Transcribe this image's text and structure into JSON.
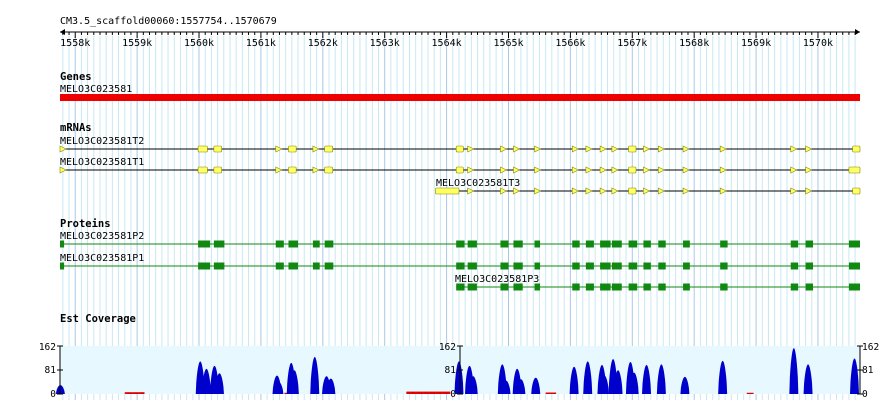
{
  "region": {
    "label": "CM3.5_scaffold00060:1557754..1570679",
    "start": 1557754,
    "end": 1570679
  },
  "ruler": {
    "ticks": [
      {
        "pos": 1558000,
        "label": "1558k"
      },
      {
        "pos": 1559000,
        "label": "1559k"
      },
      {
        "pos": 1560000,
        "label": "1560k"
      },
      {
        "pos": 1561000,
        "label": "1561k"
      },
      {
        "pos": 1562000,
        "label": "1562k"
      },
      {
        "pos": 1563000,
        "label": "1563k"
      },
      {
        "pos": 1564000,
        "label": "1564k"
      },
      {
        "pos": 1565000,
        "label": "1565k"
      },
      {
        "pos": 1566000,
        "label": "1566k"
      },
      {
        "pos": 1567000,
        "label": "1567k"
      },
      {
        "pos": 1568000,
        "label": "1568k"
      },
      {
        "pos": 1569000,
        "label": "1569k"
      },
      {
        "pos": 1570000,
        "label": "1570k"
      }
    ]
  },
  "tracks": {
    "genes": {
      "title": "Genes",
      "features": [
        {
          "name": "MELO3C023581",
          "start": 1557754,
          "end": 1570679,
          "color": "#ee0000"
        }
      ]
    },
    "mrnas": {
      "title": "mRNAs",
      "exon_color": "#ffff66",
      "features": [
        {
          "name": "MELO3C023581T2",
          "start": 1557754,
          "end": 1570679,
          "exons": [
            [
              1557754,
              1557790
            ],
            [
              1559985,
              1560135
            ],
            [
              1560240,
              1560365
            ],
            [
              1561240,
              1561310
            ],
            [
              1561445,
              1561570
            ],
            [
              1561840,
              1561920
            ],
            [
              1562030,
              1562160
            ],
            [
              1564155,
              1564270
            ],
            [
              1564340,
              1564450
            ],
            [
              1564870,
              1564980
            ],
            [
              1565080,
              1565190
            ],
            [
              1565420,
              1565480
            ],
            [
              1566030,
              1566130
            ],
            [
              1566250,
              1566330
            ],
            [
              1566480,
              1566590
            ],
            [
              1566670,
              1566780
            ],
            [
              1566940,
              1567060
            ],
            [
              1567180,
              1567260
            ],
            [
              1567420,
              1567520
            ],
            [
              1567820,
              1567880
            ],
            [
              1568420,
              1568520
            ],
            [
              1569560,
              1569640
            ],
            [
              1569800,
              1569880
            ],
            [
              1570560,
              1570679
            ]
          ]
        },
        {
          "name": "MELO3C023581T1",
          "start": 1557754,
          "end": 1570679,
          "exons": [
            [
              1557754,
              1557790
            ],
            [
              1559985,
              1560135
            ],
            [
              1560240,
              1560365
            ],
            [
              1561240,
              1561310
            ],
            [
              1561445,
              1561570
            ],
            [
              1561840,
              1561920
            ],
            [
              1562030,
              1562160
            ],
            [
              1564155,
              1564270
            ],
            [
              1564340,
              1564450
            ],
            [
              1564870,
              1564980
            ],
            [
              1565080,
              1565190
            ],
            [
              1565420,
              1565480
            ],
            [
              1566030,
              1566130
            ],
            [
              1566250,
              1566330
            ],
            [
              1566480,
              1566590
            ],
            [
              1566670,
              1566780
            ],
            [
              1566940,
              1567060
            ],
            [
              1567180,
              1567260
            ],
            [
              1567420,
              1567520
            ],
            [
              1567820,
              1567880
            ],
            [
              1568420,
              1568520
            ],
            [
              1569560,
              1569640
            ],
            [
              1569800,
              1569880
            ],
            [
              1570500,
              1570679
            ]
          ]
        },
        {
          "name": "MELO3C023581T3",
          "start": 1563820,
          "end": 1570679,
          "exons": [
            [
              1563820,
              1564200
            ],
            [
              1564340,
              1564450
            ],
            [
              1564870,
              1564980
            ],
            [
              1565080,
              1565190
            ],
            [
              1565420,
              1565480
            ],
            [
              1566030,
              1566130
            ],
            [
              1566250,
              1566330
            ],
            [
              1566480,
              1566590
            ],
            [
              1566670,
              1566780
            ],
            [
              1566940,
              1567060
            ],
            [
              1567180,
              1567260
            ],
            [
              1567420,
              1567520
            ],
            [
              1567820,
              1567880
            ],
            [
              1568420,
              1568520
            ],
            [
              1569560,
              1569640
            ],
            [
              1569800,
              1569880
            ],
            [
              1570560,
              1570679
            ]
          ]
        }
      ]
    },
    "proteins": {
      "title": "Proteins",
      "exon_color": "#118811",
      "features": [
        {
          "name": "MELO3C023581P2",
          "start": 1557754,
          "end": 1570679,
          "exons": [
            [
              1557754,
              1557820
            ],
            [
              1559985,
              1560180
            ],
            [
              1560240,
              1560410
            ],
            [
              1561240,
              1561370
            ],
            [
              1561445,
              1561600
            ],
            [
              1561840,
              1561950
            ],
            [
              1562030,
              1562170
            ],
            [
              1564155,
              1564290
            ],
            [
              1564340,
              1564490
            ],
            [
              1564870,
              1565000
            ],
            [
              1565080,
              1565230
            ],
            [
              1565420,
              1565510
            ],
            [
              1566030,
              1566150
            ],
            [
              1566250,
              1566380
            ],
            [
              1566480,
              1566650
            ],
            [
              1566670,
              1566830
            ],
            [
              1566940,
              1567080
            ],
            [
              1567180,
              1567300
            ],
            [
              1567420,
              1567540
            ],
            [
              1567820,
              1567930
            ],
            [
              1568420,
              1568540
            ],
            [
              1569560,
              1569680
            ],
            [
              1569800,
              1569920
            ],
            [
              1570500,
              1570679
            ]
          ]
        },
        {
          "name": "MELO3C023581P1",
          "start": 1557754,
          "end": 1570679,
          "exons": [
            [
              1557754,
              1557820
            ],
            [
              1559985,
              1560180
            ],
            [
              1560240,
              1560410
            ],
            [
              1561240,
              1561370
            ],
            [
              1561445,
              1561600
            ],
            [
              1561840,
              1561950
            ],
            [
              1562030,
              1562170
            ],
            [
              1564155,
              1564290
            ],
            [
              1564340,
              1564490
            ],
            [
              1564870,
              1565000
            ],
            [
              1565080,
              1565230
            ],
            [
              1565420,
              1565510
            ],
            [
              1566030,
              1566150
            ],
            [
              1566250,
              1566380
            ],
            [
              1566480,
              1566650
            ],
            [
              1566670,
              1566830
            ],
            [
              1566940,
              1567080
            ],
            [
              1567180,
              1567300
            ],
            [
              1567420,
              1567540
            ],
            [
              1567820,
              1567930
            ],
            [
              1568420,
              1568540
            ],
            [
              1569560,
              1569680
            ],
            [
              1569800,
              1569920
            ],
            [
              1570500,
              1570679
            ]
          ]
        },
        {
          "name": "MELO3C023581P3",
          "start": 1564155,
          "end": 1570679,
          "exons": [
            [
              1564155,
              1564290
            ],
            [
              1564340,
              1564490
            ],
            [
              1564870,
              1565000
            ],
            [
              1565080,
              1565230
            ],
            [
              1565420,
              1565510
            ],
            [
              1566030,
              1566150
            ],
            [
              1566250,
              1566380
            ],
            [
              1566480,
              1566650
            ],
            [
              1566670,
              1566830
            ],
            [
              1566940,
              1567080
            ],
            [
              1567180,
              1567300
            ],
            [
              1567420,
              1567540
            ],
            [
              1567820,
              1567930
            ],
            [
              1568420,
              1568540
            ],
            [
              1569560,
              1569680
            ],
            [
              1569800,
              1569920
            ],
            [
              1570500,
              1570679
            ]
          ]
        }
      ]
    },
    "est_coverage": {
      "title": "Est Coverage",
      "scale_labels": [
        "162",
        "81",
        "0"
      ],
      "max": 162,
      "bar_color": "#0000cc",
      "low_color": "#dd0000",
      "peaks": [
        {
          "pos": 1557760,
          "value": 30
        },
        {
          "pos": 1560020,
          "value": 110
        },
        {
          "pos": 1560120,
          "value": 85
        },
        {
          "pos": 1560250,
          "value": 95
        },
        {
          "pos": 1560330,
          "value": 70
        },
        {
          "pos": 1561260,
          "value": 62
        },
        {
          "pos": 1561290,
          "value": 40
        },
        {
          "pos": 1561490,
          "value": 105
        },
        {
          "pos": 1561540,
          "value": 80
        },
        {
          "pos": 1561870,
          "value": 125
        },
        {
          "pos": 1562060,
          "value": 60
        },
        {
          "pos": 1562130,
          "value": 52
        },
        {
          "pos": 1564200,
          "value": 110
        },
        {
          "pos": 1564370,
          "value": 95
        },
        {
          "pos": 1564430,
          "value": 60
        },
        {
          "pos": 1564900,
          "value": 100
        },
        {
          "pos": 1564960,
          "value": 45
        },
        {
          "pos": 1565140,
          "value": 85
        },
        {
          "pos": 1565200,
          "value": 50
        },
        {
          "pos": 1565440,
          "value": 55
        },
        {
          "pos": 1566060,
          "value": 92
        },
        {
          "pos": 1566280,
          "value": 110
        },
        {
          "pos": 1566510,
          "value": 98
        },
        {
          "pos": 1566550,
          "value": 62
        },
        {
          "pos": 1566690,
          "value": 118
        },
        {
          "pos": 1566770,
          "value": 80
        },
        {
          "pos": 1566970,
          "value": 108
        },
        {
          "pos": 1567030,
          "value": 72
        },
        {
          "pos": 1567230,
          "value": 98
        },
        {
          "pos": 1567470,
          "value": 100
        },
        {
          "pos": 1567850,
          "value": 58
        },
        {
          "pos": 1568460,
          "value": 112
        },
        {
          "pos": 1569610,
          "value": 155
        },
        {
          "pos": 1569840,
          "value": 100
        },
        {
          "pos": 1570590,
          "value": 120
        }
      ],
      "low_segments": [
        [
          1558800,
          1559100,
          6
        ],
        [
          1561380,
          1561430,
          4
        ],
        [
          1563350,
          1564050,
          8
        ],
        [
          1565600,
          1565760,
          5
        ],
        [
          1568850,
          1568950,
          4
        ]
      ]
    }
  }
}
